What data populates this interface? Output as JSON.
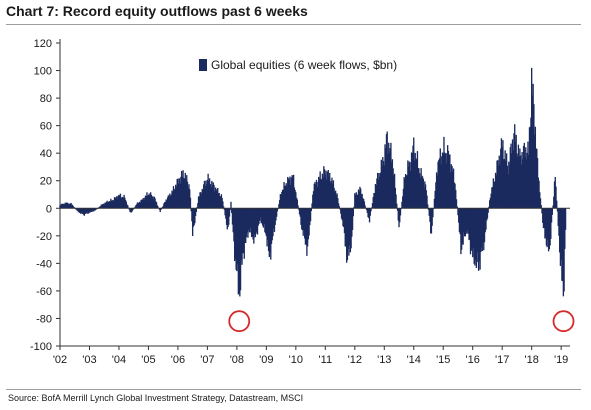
{
  "header": {
    "title": "Chart 7: Record equity outflows past 6 weeks"
  },
  "footer": {
    "source": "Source:  BofA Merrill Lynch Global Investment Strategy, Datastream, MSCI"
  },
  "colors": {
    "series": "#1b2a5e",
    "highlight": "#d62b2b",
    "axis": "#333333"
  },
  "chart_data": {
    "type": "bar",
    "title": "",
    "xlabel": "",
    "ylabel": "",
    "ylim": [
      -100,
      120
    ],
    "yticks": [
      -100,
      -80,
      -60,
      -40,
      -20,
      0,
      20,
      40,
      60,
      80,
      100,
      120
    ],
    "xticks": [
      "'02",
      "'03",
      "'04",
      "'05",
      "'06",
      "'07",
      "'08",
      "'09",
      "'10",
      "'11",
      "'12",
      "'13",
      "'14",
      "'15",
      "'16",
      "'17",
      "'18",
      "'19"
    ],
    "xlim": [
      2002.0,
      2019.3
    ],
    "legend": {
      "position": "top-center",
      "entries": [
        "Global equities (6 week flows, $bn)"
      ]
    },
    "series": [
      {
        "name": "Global equities (6 week flows, $bn)",
        "points": [
          [
            2002.0,
            3
          ],
          [
            2002.2,
            5
          ],
          [
            2002.4,
            4
          ],
          [
            2002.6,
            -3
          ],
          [
            2002.8,
            -6
          ],
          [
            2003.0,
            -4
          ],
          [
            2003.2,
            -2
          ],
          [
            2003.4,
            3
          ],
          [
            2003.6,
            6
          ],
          [
            2003.8,
            8
          ],
          [
            2004.0,
            12
          ],
          [
            2004.2,
            10
          ],
          [
            2004.4,
            -5
          ],
          [
            2004.6,
            4
          ],
          [
            2004.8,
            8
          ],
          [
            2005.0,
            14
          ],
          [
            2005.2,
            10
          ],
          [
            2005.4,
            -3
          ],
          [
            2005.6,
            8
          ],
          [
            2005.8,
            15
          ],
          [
            2006.0,
            25
          ],
          [
            2006.2,
            33
          ],
          [
            2006.4,
            20
          ],
          [
            2006.5,
            -25
          ],
          [
            2006.7,
            10
          ],
          [
            2006.9,
            22
          ],
          [
            2007.0,
            28
          ],
          [
            2007.3,
            18
          ],
          [
            2007.5,
            10
          ],
          [
            2007.7,
            -22
          ],
          [
            2007.8,
            5
          ],
          [
            2007.9,
            -35
          ],
          [
            2008.0,
            -60
          ],
          [
            2008.08,
            -82
          ],
          [
            2008.2,
            -45
          ],
          [
            2008.4,
            -20
          ],
          [
            2008.6,
            -30
          ],
          [
            2008.8,
            -10
          ],
          [
            2009.0,
            -25
          ],
          [
            2009.1,
            -47
          ],
          [
            2009.3,
            -15
          ],
          [
            2009.5,
            15
          ],
          [
            2009.7,
            25
          ],
          [
            2009.9,
            30
          ],
          [
            2010.0,
            15
          ],
          [
            2010.2,
            -18
          ],
          [
            2010.4,
            -40
          ],
          [
            2010.6,
            20
          ],
          [
            2010.8,
            28
          ],
          [
            2011.0,
            35
          ],
          [
            2011.2,
            28
          ],
          [
            2011.4,
            12
          ],
          [
            2011.6,
            -15
          ],
          [
            2011.75,
            -49
          ],
          [
            2011.9,
            -30
          ],
          [
            2012.0,
            12
          ],
          [
            2012.2,
            18
          ],
          [
            2012.5,
            -12
          ],
          [
            2012.7,
            22
          ],
          [
            2012.9,
            38
          ],
          [
            2013.0,
            50
          ],
          [
            2013.1,
            66
          ],
          [
            2013.3,
            42
          ],
          [
            2013.5,
            -18
          ],
          [
            2013.7,
            30
          ],
          [
            2013.9,
            45
          ],
          [
            2014.0,
            58
          ],
          [
            2014.2,
            35
          ],
          [
            2014.4,
            22
          ],
          [
            2014.6,
            -25
          ],
          [
            2014.8,
            40
          ],
          [
            2015.0,
            55
          ],
          [
            2015.2,
            50
          ],
          [
            2015.4,
            25
          ],
          [
            2015.6,
            -38
          ],
          [
            2015.8,
            -20
          ],
          [
            2016.0,
            -45
          ],
          [
            2016.2,
            -54
          ],
          [
            2016.4,
            -30
          ],
          [
            2016.6,
            12
          ],
          [
            2016.8,
            35
          ],
          [
            2017.0,
            60
          ],
          [
            2017.2,
            38
          ],
          [
            2017.4,
            70
          ],
          [
            2017.6,
            48
          ],
          [
            2017.8,
            55
          ],
          [
            2017.9,
            52
          ],
          [
            2018.0,
            118
          ],
          [
            2018.1,
            85
          ],
          [
            2018.2,
            40
          ],
          [
            2018.4,
            -20
          ],
          [
            2018.6,
            -42
          ],
          [
            2018.8,
            30
          ],
          [
            2019.0,
            -60
          ],
          [
            2019.08,
            -82
          ],
          [
            2019.15,
            -20
          ]
        ]
      }
    ],
    "highlights": [
      {
        "x": 2008.08,
        "y": -82
      },
      {
        "x": 2019.08,
        "y": -82
      }
    ]
  }
}
